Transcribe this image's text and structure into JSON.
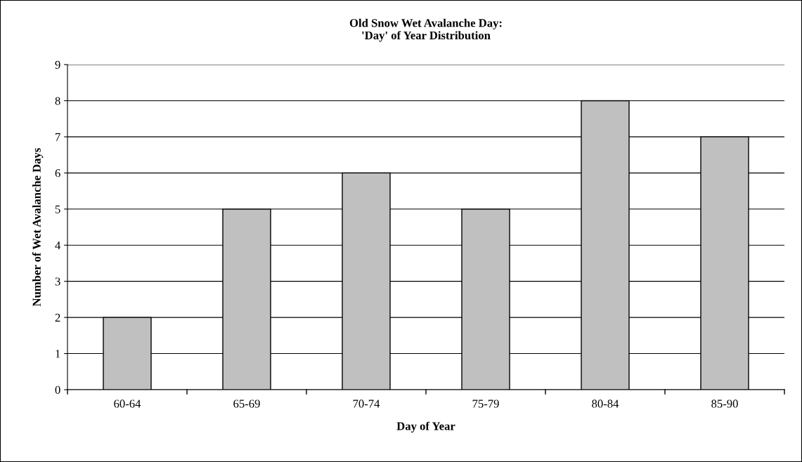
{
  "chart_data": {
    "type": "bar",
    "title": "Old Snow Wet Avalanche Day:\n'Day' of Year Distribution",
    "xlabel": "Day of Year",
    "ylabel": "Number of Wet Avalanche Days",
    "categories": [
      "60-64",
      "65-69",
      "70-74",
      "75-79",
      "80-84",
      "85-90"
    ],
    "values": [
      2,
      5,
      6,
      5,
      8,
      7
    ],
    "color": "#c0c0c0",
    "ylim": [
      0,
      9
    ],
    "yticks": [
      0,
      1,
      2,
      3,
      4,
      5,
      6,
      7,
      8,
      9
    ],
    "grid": "y",
    "legend": false
  }
}
